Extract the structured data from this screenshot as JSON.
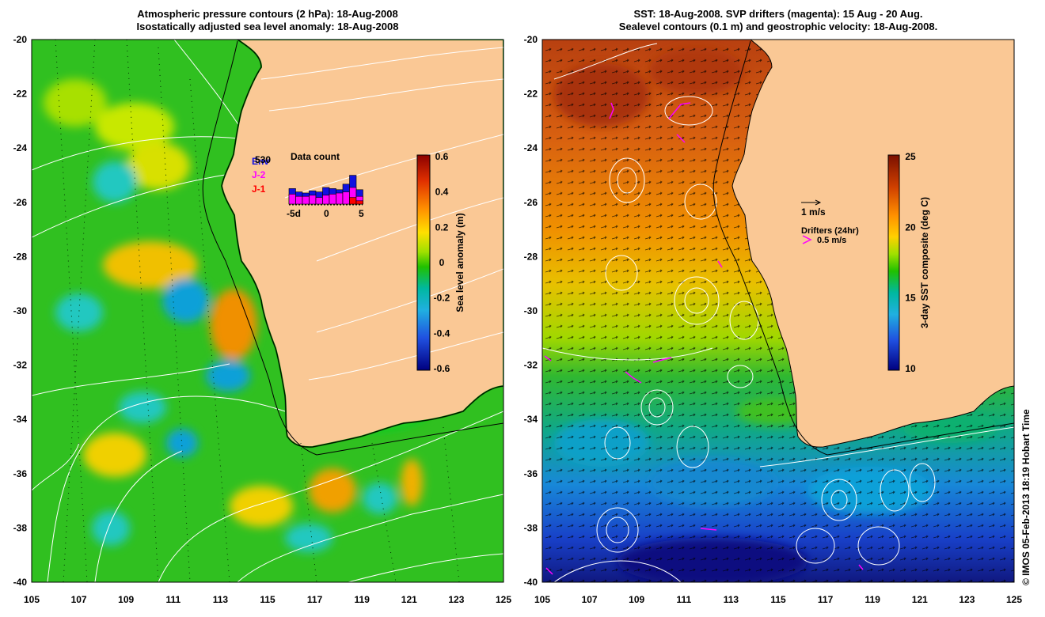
{
  "left_panel": {
    "title_line1": "Atmospheric pressure contours (2 hPa): 18-Aug-2008",
    "title_line2": "Isostatically adjusted sea level anomaly: 18-Aug-2008",
    "colorbar": {
      "label": "Sea level anomaly (m)",
      "ticks": [
        "0.6",
        "0.4",
        "0.2",
        "0",
        "-0.2",
        "-0.4",
        "-0.6"
      ],
      "colors": [
        "#8b0000",
        "#e03000",
        "#ff9000",
        "#ffe000",
        "#a0e000",
        "#20c000",
        "#00b8a0",
        "#20b0e0",
        "#2050e0",
        "#000080"
      ]
    },
    "data_count": {
      "title": "Data count",
      "legend": [
        {
          "label": "Env",
          "color": "#1010e0"
        },
        {
          "label": "530",
          "color": "#000000"
        },
        {
          "label": "J-2",
          "color": "#ff00ff"
        },
        {
          "label": "J-1",
          "color": "#ff0000"
        }
      ],
      "xticks": [
        "-5d",
        "0",
        "5"
      ],
      "env_bars": [
        28,
        22,
        20,
        24,
        22,
        30,
        28,
        26,
        36,
        52,
        26
      ],
      "j2_bars": [
        18,
        14,
        14,
        16,
        12,
        16,
        18,
        20,
        22,
        30,
        14
      ],
      "j1_bars": [
        0,
        0,
        0,
        0,
        0,
        0,
        0,
        0,
        0,
        12,
        6
      ]
    }
  },
  "right_panel": {
    "title_line1": "SST: 18-Aug-2008. SVP drifters (magenta): 15 Aug - 20 Aug.",
    "title_line2": "Sealevel contours (0.1 m) and geostrophic velocity: 18-Aug-2008.",
    "colorbar": {
      "label": "3-day SST composite (deg C)",
      "ticks": [
        "25",
        "20",
        "15",
        "10"
      ],
      "colors": [
        "#7a1000",
        "#d04000",
        "#ff9000",
        "#ffd000",
        "#a0e000",
        "#20c000",
        "#00b8a0",
        "#20b0e0",
        "#2050e0",
        "#000080"
      ]
    },
    "velocity_scale": "1 m/s",
    "drifters_title": "Drifters (24hr)",
    "drifters_scale": "0.5 m/s"
  },
  "axes": {
    "x_ticks": [
      "105",
      "107",
      "109",
      "111",
      "113",
      "115",
      "117",
      "119",
      "121",
      "123",
      "125"
    ],
    "y_ticks": [
      "-20",
      "-22",
      "-24",
      "-26",
      "-28",
      "-30",
      "-32",
      "-34",
      "-36",
      "-38",
      "-40"
    ]
  },
  "colors": {
    "land": "#fac895",
    "coast": "#000000",
    "contour": "#ffffff",
    "drifter": "#ff00ff"
  },
  "credit": "© IMOS 05-Feb-2013 18:19 Hobart Time"
}
